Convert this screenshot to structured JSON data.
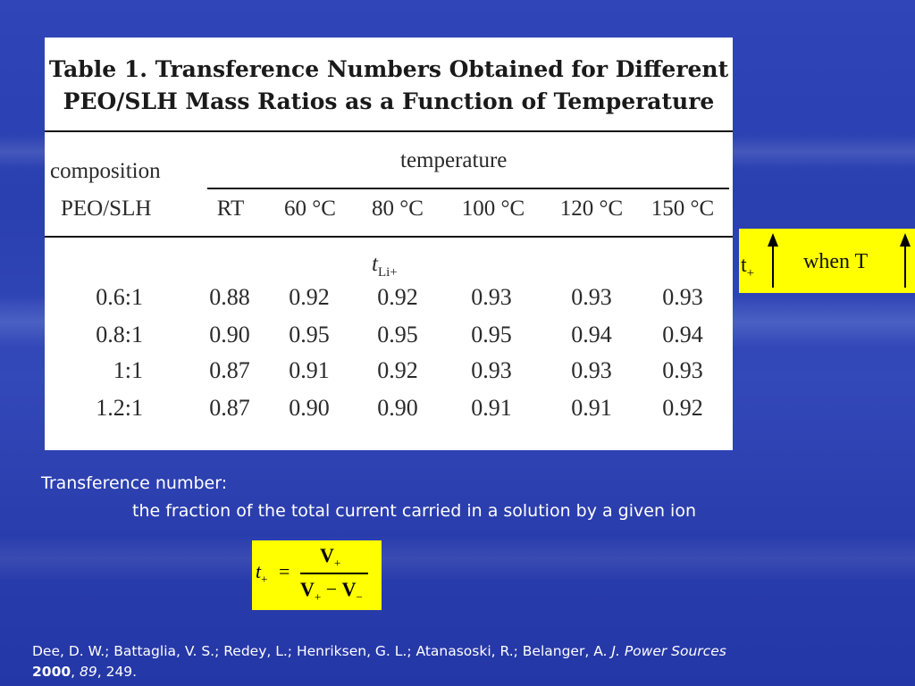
{
  "table": {
    "title_line1": "Table 1. Transference Numbers Obtained for Different",
    "title_line2": "PEO/SLH Mass Ratios as a Function of Temperature",
    "composition_label_1": "composition",
    "composition_label_2": "PEO/SLH",
    "temperature_label": "temperature",
    "columns": [
      "RT",
      "60 °C",
      "80 °C",
      "100 °C",
      "120 °C",
      "150 °C"
    ],
    "quantity_symbol": "t",
    "quantity_subscript": "Li+",
    "rows": [
      {
        "composition": "0.6:1",
        "values": [
          "0.88",
          "0.92",
          "0.92",
          "0.93",
          "0.93",
          "0.93"
        ]
      },
      {
        "composition": "0.8:1",
        "values": [
          "0.90",
          "0.95",
          "0.95",
          "0.95",
          "0.94",
          "0.94"
        ]
      },
      {
        "composition": "1:1",
        "values": [
          "0.87",
          "0.91",
          "0.92",
          "0.93",
          "0.93",
          "0.93"
        ]
      },
      {
        "composition": "1.2:1",
        "values": [
          "0.87",
          "0.90",
          "0.90",
          "0.91",
          "0.91",
          "0.92"
        ]
      }
    ]
  },
  "note": {
    "t_symbol": "t",
    "t_subscript": "+",
    "when_text": "when T",
    "arrow_direction": "up",
    "background": "#ffff00"
  },
  "definition": {
    "label": "Transference number:",
    "text": "the fraction of the total current carried in a solution by a given ion"
  },
  "formula": {
    "lhs_symbol": "t",
    "lhs_subscript": "+",
    "equals": "=",
    "numerator_symbol": "V",
    "numerator_subscript": "+",
    "denominator_first_symbol": "V",
    "denominator_first_subscript": "+",
    "operator": "−",
    "denominator_second_symbol": "V",
    "denominator_second_subscript": "−"
  },
  "citation": {
    "authors": "Dee, D. W.;  Battaglia, V. S.;  Redey, L.;  Henriksen, G. L.;  Atanasoski, R.; Belanger, A.",
    "journal": "J. Power Sources",
    "year": "2000",
    "volume": "89",
    "pages": ", 249."
  }
}
